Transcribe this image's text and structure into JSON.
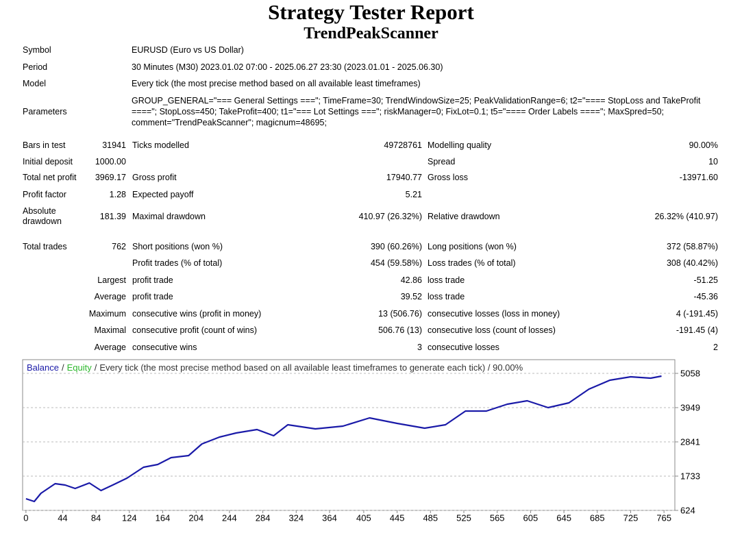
{
  "header": {
    "title": "Strategy Tester Report",
    "subtitle": "TrendPeakScanner"
  },
  "info": [
    {
      "label": "Symbol",
      "value": "EURUSD (Euro vs US Dollar)"
    },
    {
      "label": "Period",
      "value": "30 Minutes (M30) 2023.01.02 07:00 - 2025.06.27 23:30 (2023.01.01 - 2025.06.30)"
    },
    {
      "label": "Model",
      "value": "Every tick (the most precise method based on all available least timeframes)"
    },
    {
      "label": "Parameters",
      "value": "GROUP_GENERAL=\"=== General Settings ===\"; TimeFrame=30; TrendWindowSize=25; PeakValidationRange=6; t2=\"==== StopLoss and TakeProfit ====\"; StopLoss=450; TakeProfit=400; t1=\"=== Lot Settings ===\"; riskManager=0; FixLot=0.1; t5=\"==== Order Labels ====\"; MaxSpred=50; comment=\"TrendPeakScanner\"; magicnum=48695;"
    }
  ],
  "stats": {
    "rows": [
      [
        "Bars in test",
        "31941",
        "Ticks modelled",
        "49728761",
        "Modelling quality",
        "90.00%"
      ],
      [
        "Initial deposit",
        "1000.00",
        null,
        null,
        "Spread",
        "10"
      ],
      [
        "Total net profit",
        "3969.17",
        "Gross profit",
        "17940.77",
        "Gross loss",
        "-13971.60"
      ],
      [
        "Profit factor",
        "1.28",
        "Expected payoff",
        "5.21",
        null,
        null
      ],
      [
        "Absolute drawdown",
        "181.39",
        "Maximal drawdown",
        "410.97 (26.32%)",
        "Relative drawdown",
        "26.32% (410.97)"
      ],
      [
        "Total trades",
        "762",
        "Short positions (won %)",
        "390 (60.26%)",
        "Long positions (won %)",
        "372 (58.87%)"
      ],
      [
        null,
        null,
        "Profit trades (% of total)",
        "454 (59.58%)",
        "Loss trades (% of total)",
        "308 (40.42%)"
      ],
      [
        null,
        "Largest",
        "profit trade",
        "42.86",
        "loss trade",
        "-51.25"
      ],
      [
        null,
        "Average",
        "profit trade",
        "39.52",
        "loss trade",
        "-45.36"
      ],
      [
        null,
        "Maximum",
        "consecutive wins (profit in money)",
        "13 (506.76)",
        "consecutive losses (loss in money)",
        "4 (-191.45)"
      ],
      [
        null,
        "Maximal",
        "consecutive profit (count of wins)",
        "506.76 (13)",
        "consecutive loss (count of losses)",
        "-191.45 (4)"
      ],
      [
        null,
        "Average",
        "consecutive wins",
        "3",
        "consecutive losses",
        "2"
      ]
    ]
  },
  "chart_data": {
    "type": "line",
    "separator": "/",
    "equity": {
      "name": "Equity",
      "color": "#2db82d"
    },
    "caption": "Every tick (the most precise method based on all available least timeframes to generate each tick) / 90.00%",
    "x": [
      0,
      10,
      18,
      35,
      47,
      59,
      76,
      90,
      104,
      121,
      141,
      158,
      174,
      195,
      211,
      232,
      252,
      277,
      297,
      314,
      347,
      380,
      412,
      445,
      478,
      503,
      527,
      552,
      577,
      601,
      626,
      651,
      675,
      700,
      725,
      749,
      762
    ],
    "series": [
      {
        "name": "Balance",
        "color": "#1a1aa8",
        "values": [
          1000,
          912,
          1178,
          1488,
          1444,
          1333,
          1510,
          1267,
          1444,
          1666,
          2021,
          2109,
          2331,
          2398,
          2774,
          2996,
          3129,
          3240,
          3040,
          3395,
          3262,
          3351,
          3617,
          3440,
          3284,
          3395,
          3838,
          3838,
          4060,
          4171,
          3949,
          4104,
          4548,
          4836,
          4947,
          4903,
          4969
        ]
      }
    ],
    "xlim": [
      -4,
      778
    ],
    "ylim": [
      624,
      5501
    ],
    "xticks": [
      0,
      44,
      84,
      124,
      164,
      204,
      244,
      284,
      324,
      364,
      405,
      445,
      485,
      525,
      565,
      605,
      645,
      685,
      725,
      765
    ],
    "yticks": [
      624,
      1733,
      2841,
      3949,
      5058
    ],
    "grid": true
  }
}
